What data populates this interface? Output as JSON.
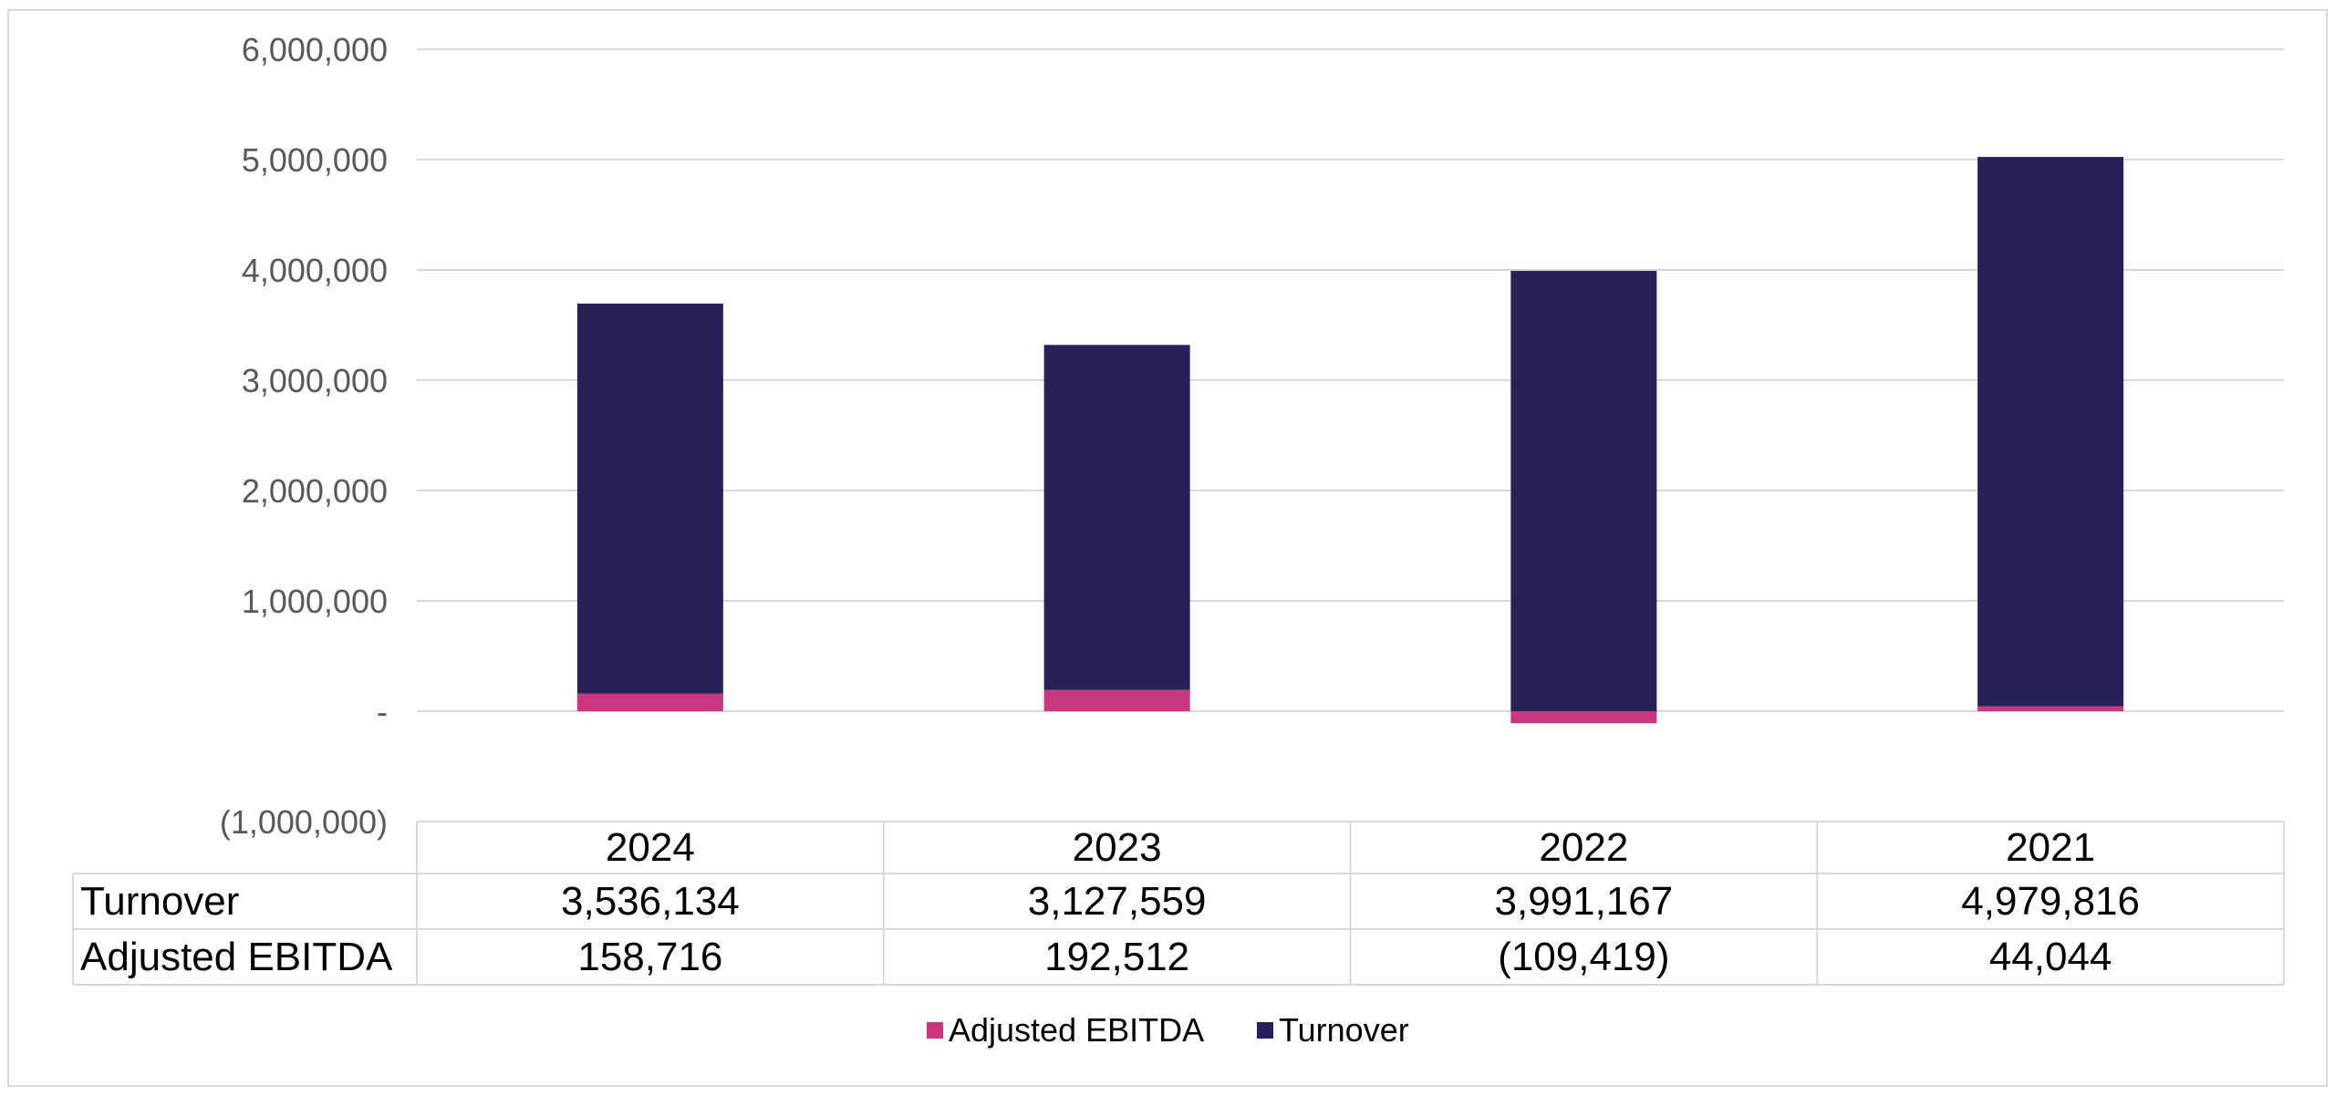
{
  "chart_data": {
    "type": "bar",
    "stacked": true,
    "categories": [
      "2024",
      "2023",
      "2022",
      "2021"
    ],
    "series": [
      {
        "name": "Adjusted EBITDA",
        "values": [
          158716,
          192512,
          -109419,
          44044
        ],
        "color": "#cc3680"
      },
      {
        "name": "Turnover",
        "values": [
          3536134,
          3127559,
          3991167,
          4979816
        ],
        "color": "#262259"
      }
    ],
    "ylim": [
      -1000000,
      6000000
    ],
    "yticks": [
      6000000,
      5000000,
      4000000,
      3000000,
      2000000,
      1000000,
      0,
      -1000000
    ],
    "ytick_labels": [
      "6,000,000",
      "5,000,000",
      "4,000,000",
      "3,000,000",
      "2,000,000",
      "1,000,000",
      "-",
      "(1,000,000)"
    ],
    "grid": true,
    "legend_position": "bottom",
    "data_table": {
      "rows": [
        {
          "label": "Turnover",
          "values": [
            "3,536,134",
            "3,127,559",
            "3,991,167",
            "4,979,816"
          ]
        },
        {
          "label": "Adjusted EBITDA",
          "values": [
            "158,716",
            "192,512",
            "(109,419)",
            "44,044"
          ]
        }
      ]
    }
  }
}
